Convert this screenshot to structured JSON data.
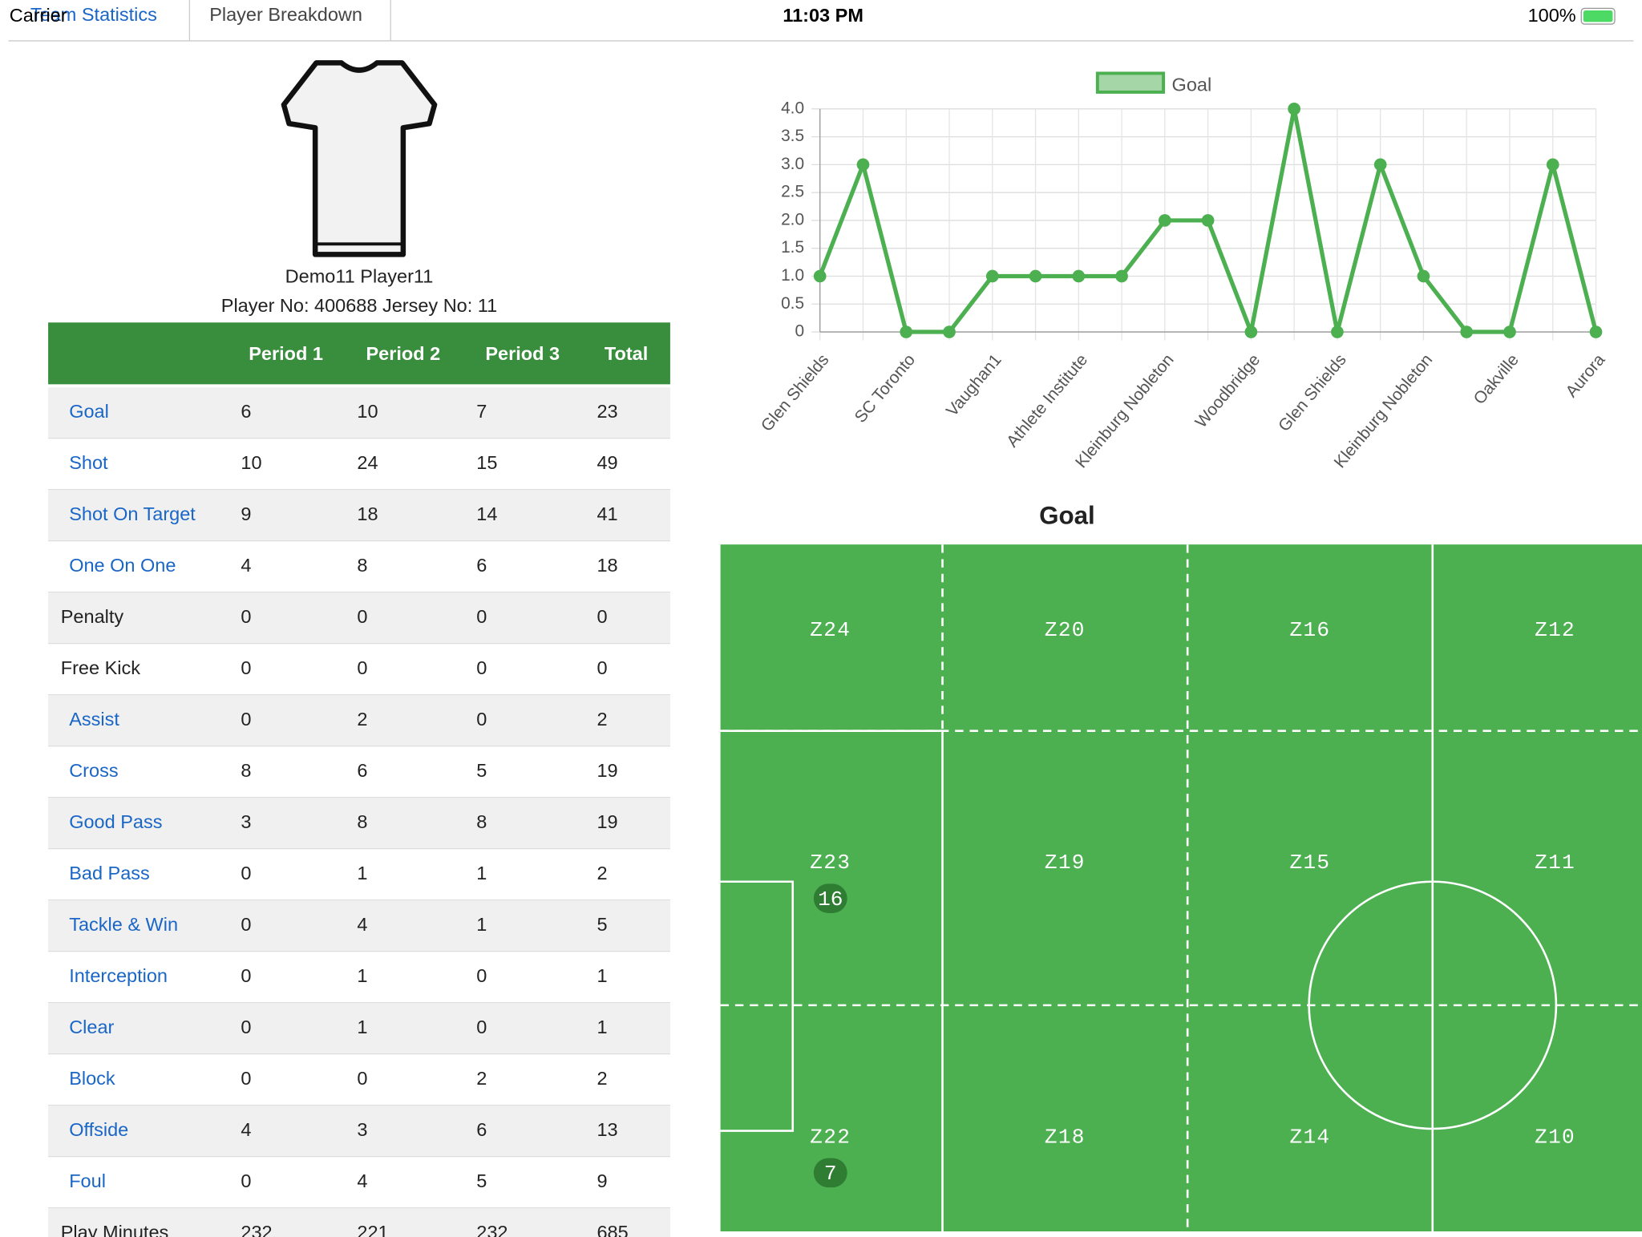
{
  "status": {
    "carrier": "Carrier",
    "time": "11:03 PM",
    "battery": "100%"
  },
  "tabs": [
    "Team Statistics",
    "Player Breakdown"
  ],
  "player": {
    "name": "Demo11 Player11",
    "info": "Player No: 400688 Jersey No: 11"
  },
  "table": {
    "header": [
      "Period 1",
      "Period 2",
      "Period 3",
      "Total"
    ],
    "rows": [
      {
        "label": "Goal",
        "link": true,
        "values": [
          6,
          10,
          7,
          23
        ]
      },
      {
        "label": "Shot",
        "link": true,
        "values": [
          10,
          24,
          15,
          49
        ]
      },
      {
        "label": "Shot On Target",
        "link": true,
        "values": [
          9,
          18,
          14,
          41
        ]
      },
      {
        "label": "One On One",
        "link": true,
        "values": [
          4,
          8,
          6,
          18
        ]
      },
      {
        "label": "Penalty",
        "link": false,
        "values": [
          0,
          0,
          0,
          0
        ]
      },
      {
        "label": "Free Kick",
        "link": false,
        "values": [
          0,
          0,
          0,
          0
        ]
      },
      {
        "label": "Assist",
        "link": true,
        "values": [
          0,
          2,
          0,
          2
        ]
      },
      {
        "label": "Cross",
        "link": true,
        "values": [
          8,
          6,
          5,
          19
        ]
      },
      {
        "label": "Good Pass",
        "link": true,
        "values": [
          3,
          8,
          8,
          19
        ]
      },
      {
        "label": "Bad Pass",
        "link": true,
        "values": [
          0,
          1,
          1,
          2
        ]
      },
      {
        "label": "Tackle & Win",
        "link": true,
        "values": [
          0,
          4,
          1,
          5
        ]
      },
      {
        "label": "Interception",
        "link": true,
        "values": [
          0,
          1,
          0,
          1
        ]
      },
      {
        "label": "Clear",
        "link": true,
        "values": [
          0,
          1,
          0,
          1
        ]
      },
      {
        "label": "Block",
        "link": true,
        "values": [
          0,
          0,
          2,
          2
        ]
      },
      {
        "label": "Offside",
        "link": true,
        "values": [
          4,
          3,
          6,
          13
        ]
      },
      {
        "label": "Foul",
        "link": true,
        "values": [
          0,
          4,
          5,
          9
        ]
      },
      {
        "label": "Play Minutes",
        "link": false,
        "values": [
          232,
          221,
          232,
          685
        ]
      }
    ]
  },
  "chart_data": {
    "type": "line",
    "categories": [
      "Glen Shields",
      null,
      "SC Toronto",
      null,
      "Vaughan1",
      null,
      "Athlete Institute",
      null,
      "Kleinburg Nobleton",
      null,
      "Woodbridge",
      null,
      "Glen Shields",
      null,
      "Kleinburg Nobleton",
      null,
      "Oakville",
      null,
      "Aurora"
    ],
    "series": [
      {
        "name": "Goal",
        "color": "#4caf50",
        "values": [
          1,
          3,
          0,
          0,
          1,
          1,
          1,
          1,
          2,
          2,
          0,
          4,
          0,
          3,
          1,
          0,
          0,
          3,
          0
        ]
      }
    ],
    "ylim": [
      0,
      4
    ],
    "yticks": [
      0,
      0.5,
      {
        "value": 1,
        "label": "1.0"
      },
      1.5,
      {
        "value": 2,
        "label": "2.0"
      },
      2.5,
      {
        "value": 3,
        "label": "3.0"
      },
      3.5,
      {
        "value": 4,
        "label": "4.0"
      }
    ],
    "grid": true
  },
  "field": {
    "title": "Goal",
    "zones": [
      [
        {
          "label": "Z24"
        },
        {
          "label": "Z20"
        },
        {
          "label": "Z16"
        },
        {
          "label": "Z12"
        }
      ],
      [
        {
          "label": "Z23",
          "count": 16
        },
        {
          "label": "Z19"
        },
        {
          "label": "Z15"
        },
        {
          "label": "Z11"
        }
      ],
      [
        {
          "label": "Z22",
          "count": 7
        },
        {
          "label": "Z18"
        },
        {
          "label": "Z14"
        },
        {
          "label": "Z10"
        }
      ]
    ]
  }
}
